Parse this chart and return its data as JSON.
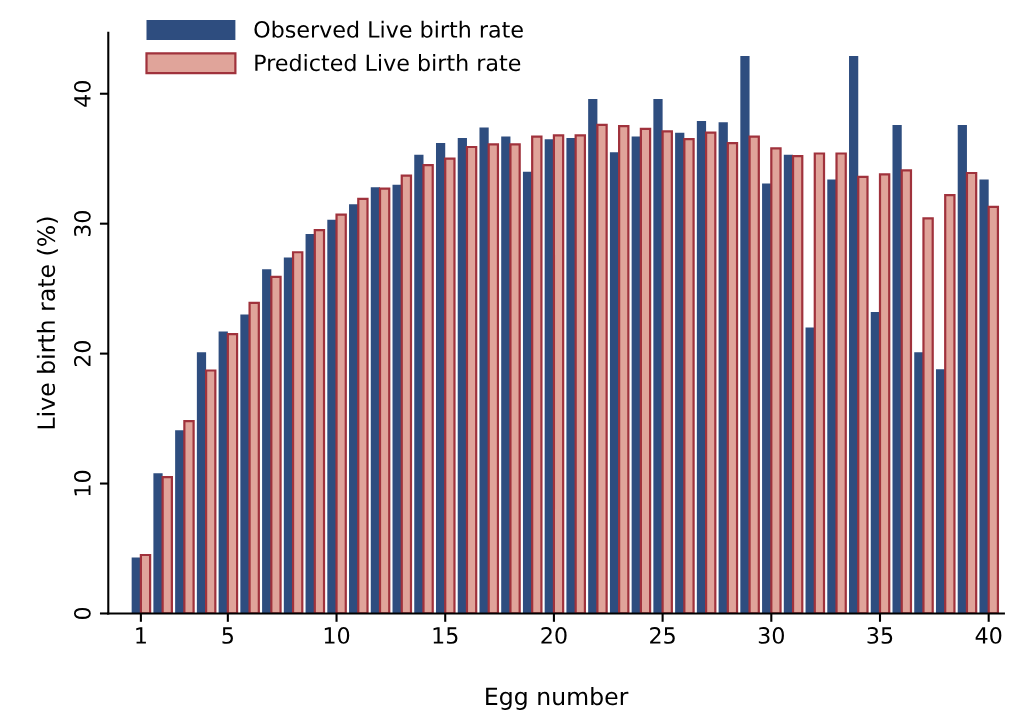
{
  "chart_data": {
    "type": "bar",
    "xlabel": "Egg number",
    "ylabel": "Live birth rate (%)",
    "x": [
      1,
      2,
      3,
      4,
      5,
      6,
      7,
      8,
      9,
      10,
      11,
      12,
      13,
      14,
      15,
      16,
      17,
      18,
      19,
      20,
      21,
      22,
      23,
      24,
      25,
      26,
      27,
      28,
      29,
      30,
      31,
      32,
      33,
      34,
      35,
      36,
      37,
      38,
      39,
      40
    ],
    "series": [
      {
        "name": "Observed Live birth rate",
        "color": "#2e4d7f",
        "values": [
          4.3,
          10.8,
          14.1,
          20.1,
          21.7,
          23.0,
          26.5,
          27.4,
          29.2,
          30.3,
          31.5,
          32.8,
          33.0,
          35.3,
          36.2,
          36.6,
          37.4,
          36.7,
          34.0,
          36.5,
          36.6,
          39.6,
          35.5,
          36.7,
          39.6,
          37.0,
          37.9,
          37.8,
          42.9,
          33.1,
          35.3,
          22.0,
          33.4,
          42.9,
          23.2,
          37.6,
          20.1,
          18.8,
          37.6,
          33.4
        ]
      },
      {
        "name": "Predicted Live birth rate",
        "color": "#e0a49a",
        "values": [
          4.5,
          10.5,
          14.8,
          18.7,
          21.5,
          23.9,
          25.9,
          27.8,
          29.5,
          30.7,
          31.9,
          32.7,
          33.7,
          34.5,
          35.0,
          35.9,
          36.1,
          36.1,
          36.7,
          36.8,
          36.8,
          37.6,
          37.5,
          37.3,
          37.1,
          36.5,
          37.0,
          36.2,
          36.7,
          35.8,
          35.2,
          35.4,
          35.4,
          33.6,
          33.8,
          34.1,
          30.4,
          32.2,
          33.9,
          31.3
        ]
      }
    ],
    "xlim": [
      -0.5,
      40.7
    ],
    "xticks": [
      1,
      5,
      10,
      15,
      20,
      25,
      30,
      35,
      40
    ],
    "ylim": [
      0,
      44.7
    ],
    "yticks": [
      0,
      10,
      20,
      30,
      40
    ],
    "grid": false,
    "legend": "top left"
  }
}
